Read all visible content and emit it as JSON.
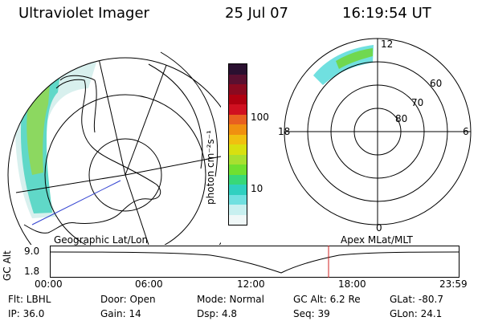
{
  "header": {
    "instrument": "Ultraviolet Imager",
    "date": "25 Jul 07",
    "time": "16:19:54 UT"
  },
  "geographic_panel": {
    "label": "Geographic Lat/Lon"
  },
  "colorbar": {
    "unit_label": "photon cm⁻²s⁻¹",
    "ticks": [
      "100",
      "10"
    ],
    "colors": [
      "#2a1030",
      "#5a1030",
      "#8a0a20",
      "#b00010",
      "#d01020",
      "#e86020",
      "#f09010",
      "#f0c010",
      "#d8e010",
      "#a8e030",
      "#70e030",
      "#38d878",
      "#30d0c0",
      "#70e0e0",
      "#c8f0f0",
      "#f0f8f8"
    ]
  },
  "polar_panel": {
    "label": "Apex MLat/MLT",
    "lat_labels": [
      "60",
      "70",
      "80"
    ],
    "mlt_labels": {
      "top": "12",
      "left": "18",
      "right": "6",
      "bottom": "0"
    }
  },
  "altitude_plot": {
    "axis_label": "GC Alt",
    "y_ticks": [
      "9.0",
      "1.8"
    ],
    "x_ticks": [
      "00:00",
      "06:00",
      "12:00",
      "18:00",
      "23:59"
    ],
    "current_time_hours": 16.33
  },
  "info": {
    "flt": "Flt: LBHL",
    "ip": "IP: 36.0",
    "door": "Door: Open",
    "gain": "Gain: 14",
    "mode": "Mode: Normal",
    "dsp": "Dsp:    4.8",
    "gc_alt": "GC Alt: 6.2 Re",
    "seq": "Seq: 39",
    "glat": "GLat: -80.7",
    "glon": "GLon:  24.1"
  }
}
